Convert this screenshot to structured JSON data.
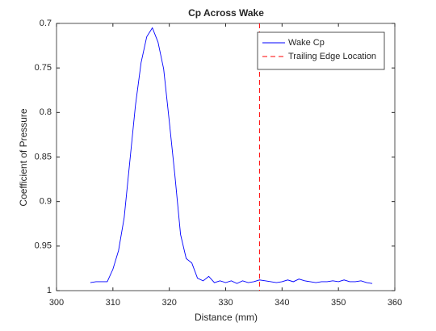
{
  "chart_data": {
    "type": "line",
    "title": "Cp Across Wake",
    "xlabel": "Distance (mm)",
    "ylabel": "Coefficient of Pressure",
    "xlim": [
      300,
      360
    ],
    "xticks": [
      300,
      310,
      320,
      330,
      340,
      350,
      360
    ],
    "ylim": [
      0.7,
      1
    ],
    "yticks": [
      0.7,
      0.75,
      0.8,
      0.85,
      0.9,
      0.95,
      1
    ],
    "y_direction": "reverse",
    "legend": "northeast",
    "series": [
      {
        "name": "Wake Cp",
        "color": "#0000ff",
        "style": "solid",
        "x": [
          306,
          307,
          308,
          309,
          310,
          311,
          312,
          313,
          314,
          315,
          316,
          317,
          318,
          319,
          320,
          321,
          322,
          323,
          324,
          325,
          326,
          327,
          328,
          329,
          330,
          331,
          332,
          333,
          334,
          335,
          336,
          337,
          338,
          339,
          340,
          341,
          342,
          343,
          344,
          345,
          346,
          347,
          348,
          349,
          350,
          351,
          352,
          353,
          354,
          355,
          356
        ],
        "values": [
          0.991,
          0.99,
          0.99,
          0.99,
          0.976,
          0.955,
          0.918,
          0.855,
          0.792,
          0.744,
          0.715,
          0.705,
          0.721,
          0.751,
          0.81,
          0.871,
          0.937,
          0.964,
          0.969,
          0.986,
          0.989,
          0.984,
          0.991,
          0.989,
          0.991,
          0.989,
          0.992,
          0.989,
          0.991,
          0.99,
          0.988,
          0.989,
          0.99,
          0.991,
          0.99,
          0.988,
          0.99,
          0.987,
          0.989,
          0.99,
          0.991,
          0.99,
          0.99,
          0.989,
          0.99,
          0.988,
          0.99,
          0.99,
          0.989,
          0.991,
          0.992
        ]
      },
      {
        "name": "Trailing Edge Location",
        "color": "#ff0000",
        "style": "dashed",
        "xline": 336
      }
    ]
  }
}
